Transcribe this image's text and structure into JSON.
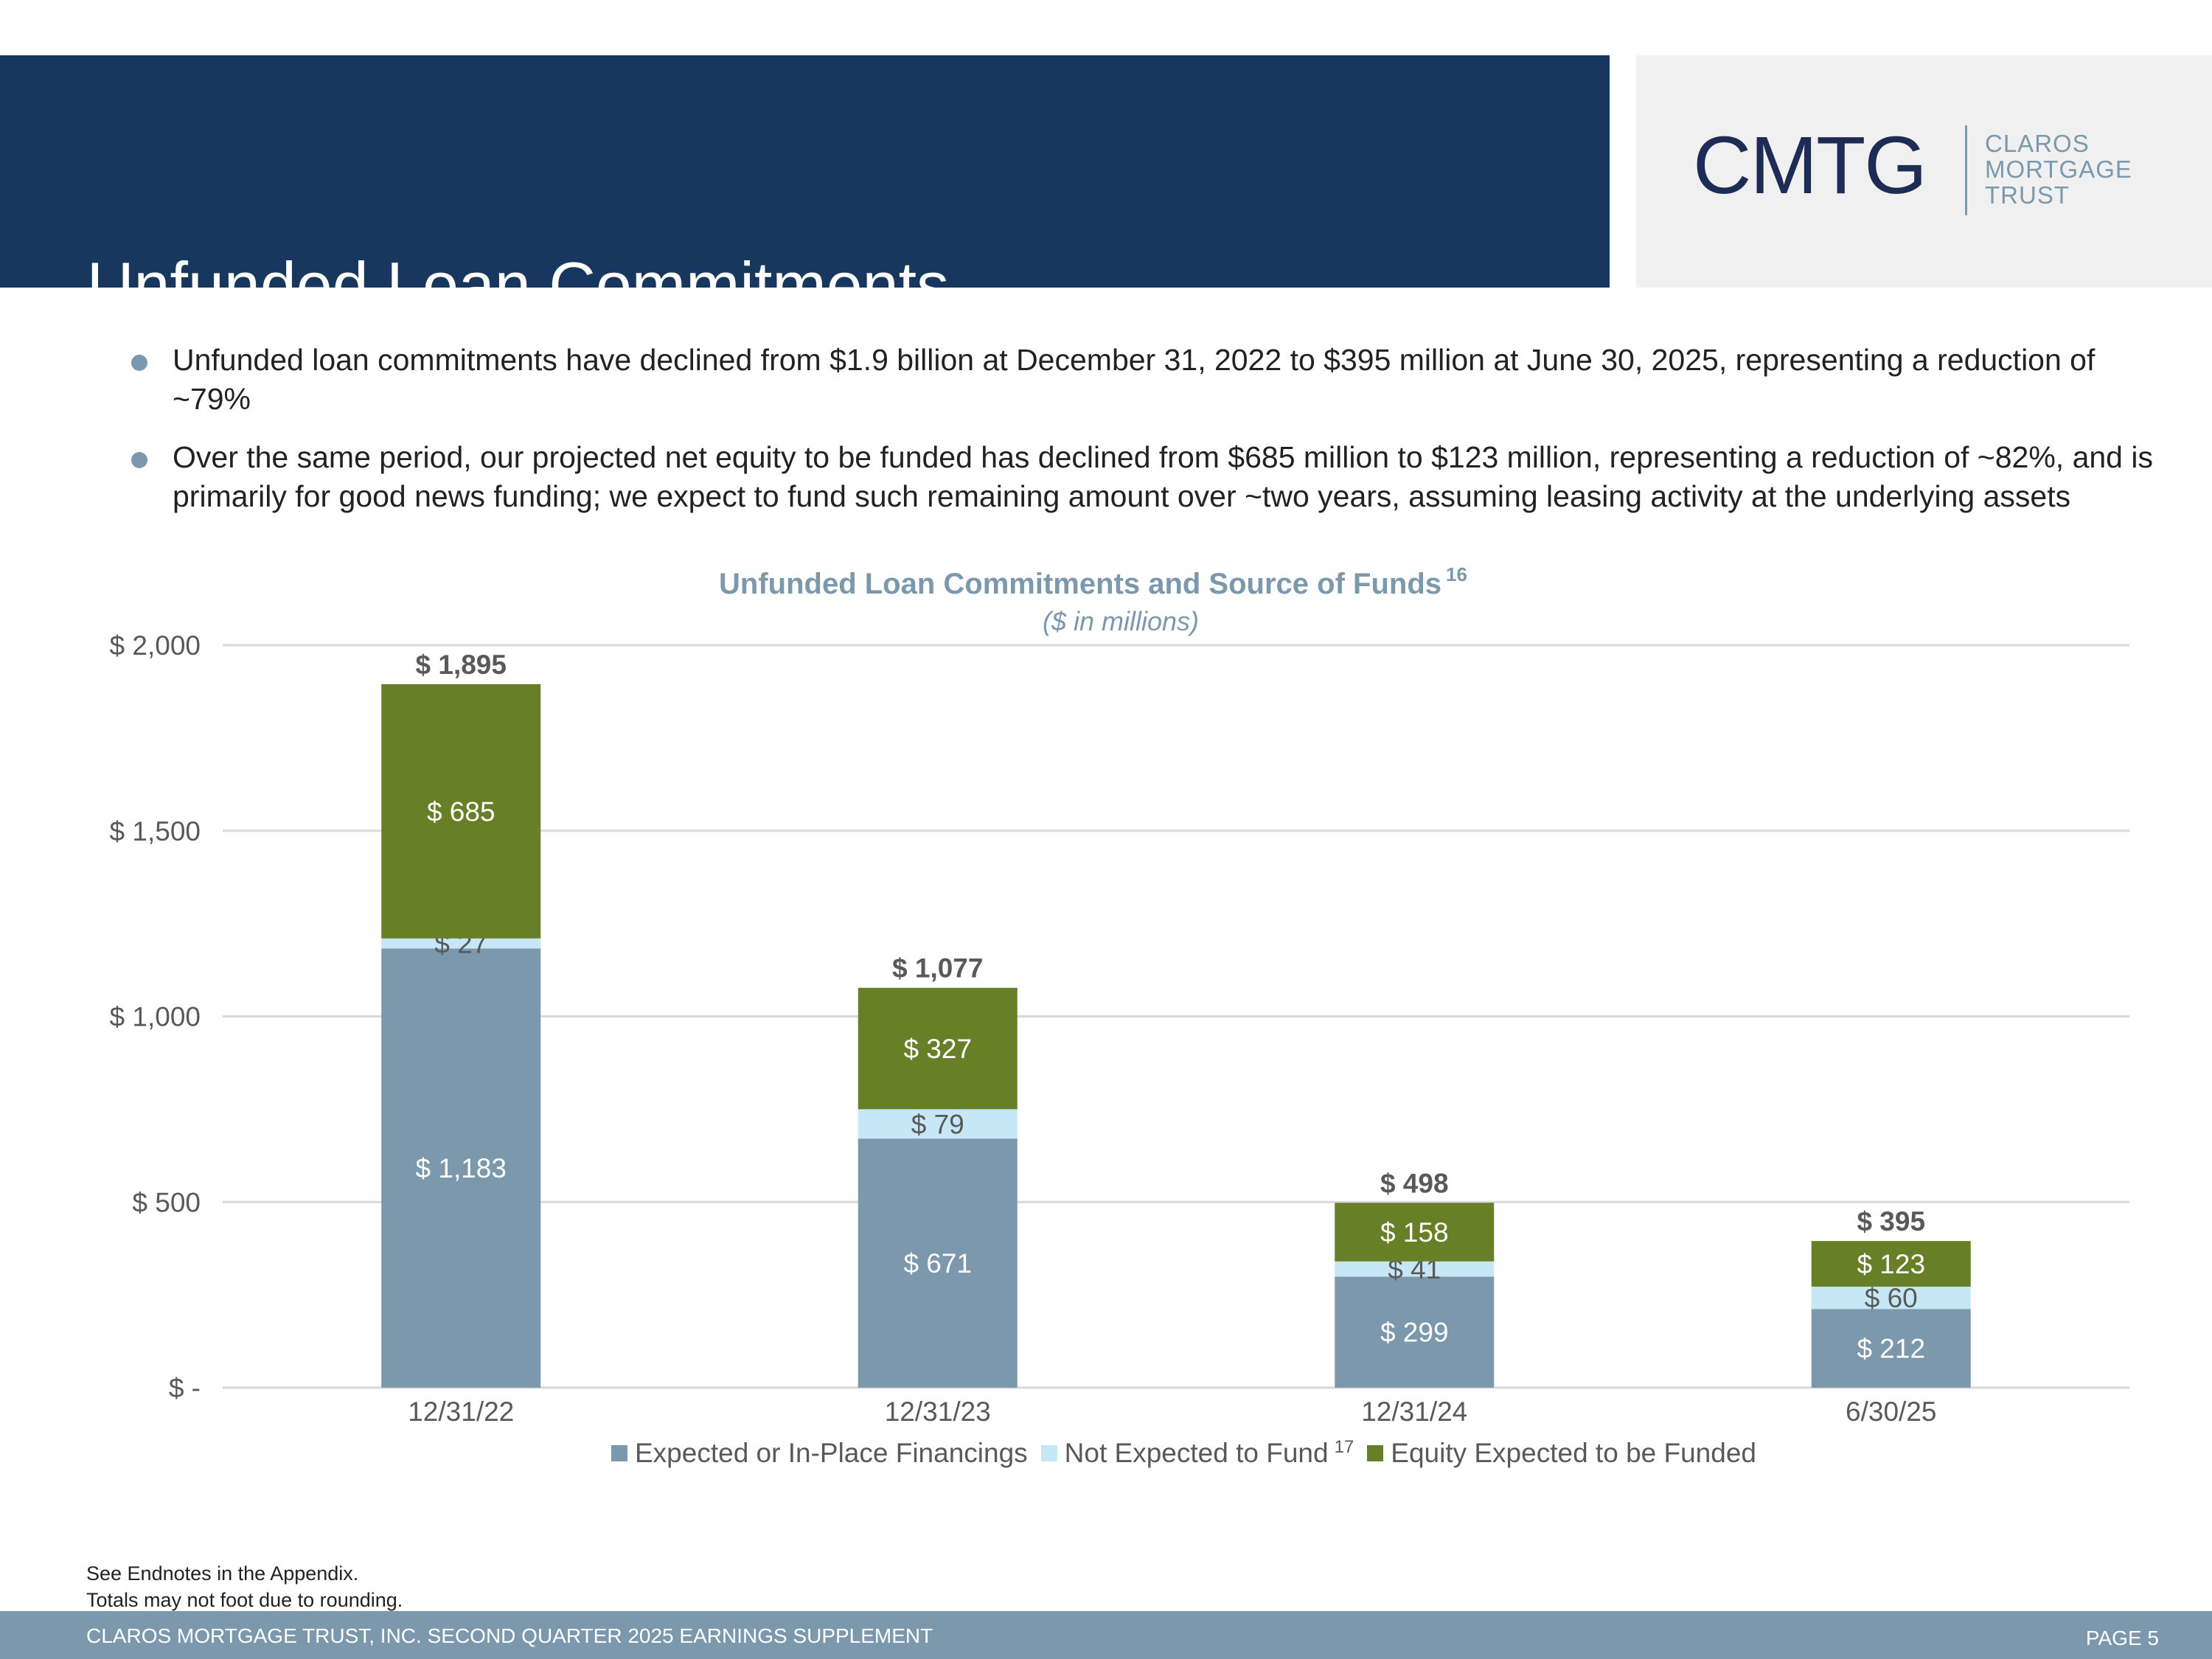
{
  "header": {
    "title": "Unfunded Loan Commitments"
  },
  "logo": {
    "mark": "CMTG",
    "lines": [
      "CLAROS",
      "MORTGAGE",
      "TRUST"
    ]
  },
  "bullets": [
    "Unfunded loan commitments have declined from $1.9 billion at December 31, 2022 to $395 million at June 30, 2025, representing a reduction of ~79%",
    "Over the same period, our projected net equity to be funded has declined from $685 million to $123 million, representing a reduction of ~82%, and is primarily for good news funding; we expect to fund such remaining amount over ~two years, assuming leasing activity at the underlying assets"
  ],
  "chart_data": {
    "type": "bar",
    "stacked": true,
    "title": "Unfunded Loan Commitments and Source of Funds",
    "title_superscript": "16",
    "subtitle": "($ in millions)",
    "categories": [
      "12/31/22",
      "12/31/23",
      "12/31/24",
      "6/30/25"
    ],
    "series": [
      {
        "name": "Expected or In-Place Financings",
        "values": [
          1183,
          671,
          299,
          212
        ],
        "labels": [
          "$ 1,183",
          "$ 671",
          "$ 299",
          "$ 212"
        ],
        "color": "#7b98ac",
        "label_color": "#ffffff",
        "superscript": ""
      },
      {
        "name": "Not Expected to Fund",
        "values": [
          27,
          79,
          41,
          60
        ],
        "labels": [
          "$ 27",
          "$ 79",
          "$ 41",
          "$ 60"
        ],
        "color": "#c6e7f5",
        "label_color": "#595959",
        "superscript": "17"
      },
      {
        "name": "Equity Expected to be Funded",
        "values": [
          685,
          327,
          158,
          123
        ],
        "labels": [
          "$ 685",
          "$ 327",
          "$ 158",
          "$ 123"
        ],
        "color": "#677f26",
        "label_color": "#ffffff",
        "superscript": ""
      }
    ],
    "totals": [
      1895,
      1077,
      498,
      395
    ],
    "total_labels": [
      "$ 1,895",
      "$ 1,077",
      "$ 498",
      "$ 395"
    ],
    "ylim": [
      0,
      2000
    ],
    "yticks": [
      0,
      500,
      1000,
      1500,
      2000
    ],
    "ytick_labels": [
      "$ -",
      "$ 500",
      "$ 1,000",
      "$ 1,500",
      "$ 2,000"
    ],
    "grid": true,
    "legend": "bottom"
  },
  "footnotes": [
    "See Endnotes in the Appendix.",
    "Totals may not foot due to rounding."
  ],
  "footer": {
    "left": "CLAROS MORTGAGE TRUST, INC. SECOND QUARTER 2025 EARNINGS SUPPLEMENT",
    "right": "PAGE 5"
  }
}
